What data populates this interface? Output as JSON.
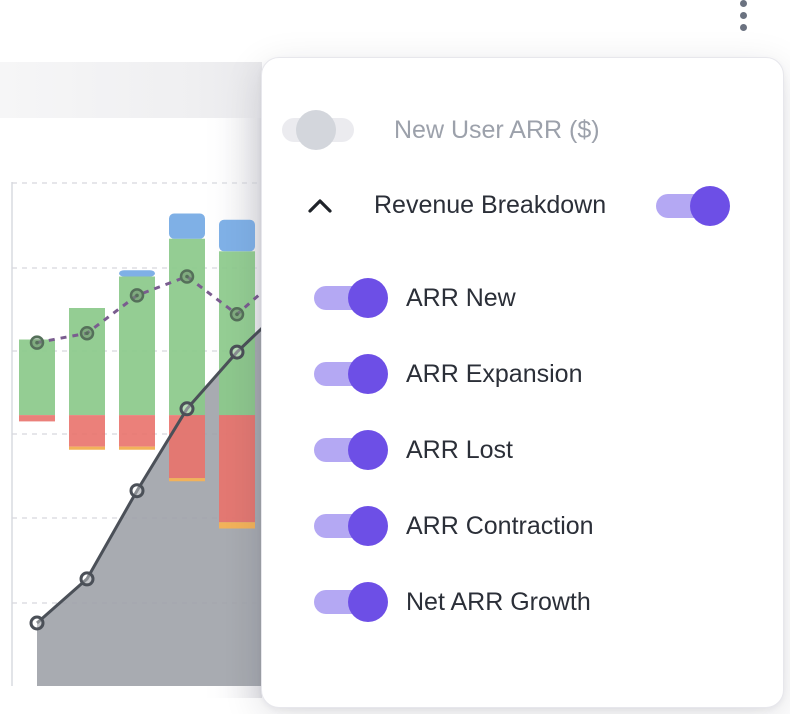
{
  "menu": {
    "new_user_toggle": {
      "label": "New User ARR ($)",
      "enabled": false
    },
    "revenue_breakdown": {
      "label": "Revenue Breakdown",
      "enabled": true,
      "expanded": true
    },
    "items": [
      {
        "label": "ARR New",
        "enabled": true
      },
      {
        "label": "ARR Expansion",
        "enabled": true
      },
      {
        "label": "ARR Lost",
        "enabled": true
      },
      {
        "label": "ARR Contraction",
        "enabled": true
      },
      {
        "label": "Net ARR Growth",
        "enabled": true
      }
    ]
  },
  "icons": {
    "more_menu": "kebab-vertical-icon",
    "collapse": "chevron-up-icon"
  },
  "colors": {
    "accent": "#6d4fe6",
    "accent_track": "#b4a8f3",
    "toggle_off_knob": "#d3d6dc",
    "arr_new": "#7fb0e6",
    "arr_expansion": "#8bc98a",
    "arr_lost": "#e9726b",
    "arr_contraction": "#f2b25a",
    "net_growth_line": "#7a5c8f",
    "cumulative_area": "#9ea2a8",
    "cumulative_line": "#4b5058"
  },
  "chart_data": {
    "type": "bar",
    "stacked": true,
    "categories": [
      "",
      "",
      "",
      "",
      ""
    ],
    "series": [
      {
        "values": [
          0,
          0,
          1,
          4,
          5
        ]
      },
      {
        "values": [
          12,
          17,
          22,
          28,
          26
        ]
      },
      {
        "values": [
          -1,
          -5,
          -5,
          -10,
          -17
        ]
      },
      {
        "values": [
          0,
          -0.5,
          -0.5,
          -0.5,
          -1
        ]
      },
      {
        "type": "line",
        "style": "dashed",
        "values": [
          11.5,
          13,
          19,
          22,
          16
        ]
      },
      {
        "type": "area",
        "values": [
          -33,
          -26,
          -12,
          1,
          10
        ]
      }
    ],
    "ylim": [
      -43,
      37
    ],
    "grid": true
  }
}
